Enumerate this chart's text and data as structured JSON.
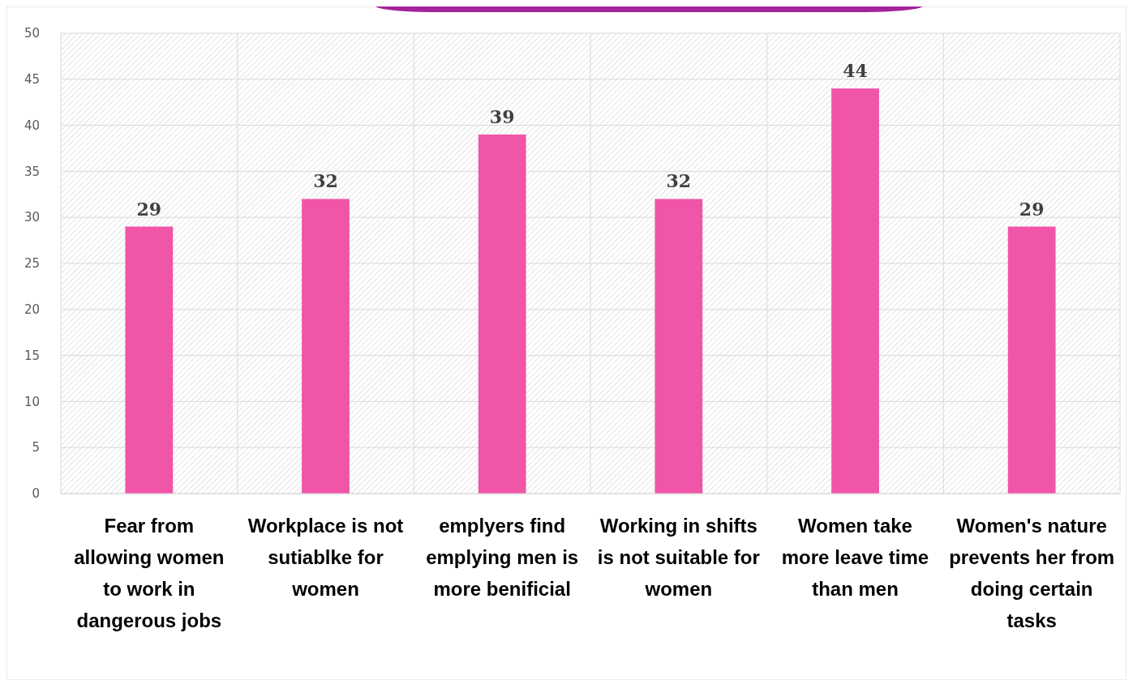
{
  "chart_data": {
    "type": "bar",
    "categories": [
      "Fear from allowing women to work in dangerous jobs",
      "Workplace is not sutiablke for women",
      "emplyers find emplying men is more benificial",
      "Working in shifts is not suitable for women",
      "Women take more leave time than men",
      "Women's nature prevents her from doing certain tasks"
    ],
    "values": [
      29,
      32,
      39,
      32,
      44,
      29
    ],
    "color": "#f055a8",
    "ylim": [
      0,
      50
    ],
    "yticks": [
      0,
      5,
      10,
      15,
      20,
      25,
      30,
      35,
      40,
      45,
      50
    ],
    "grid": true,
    "data_labels": true
  }
}
